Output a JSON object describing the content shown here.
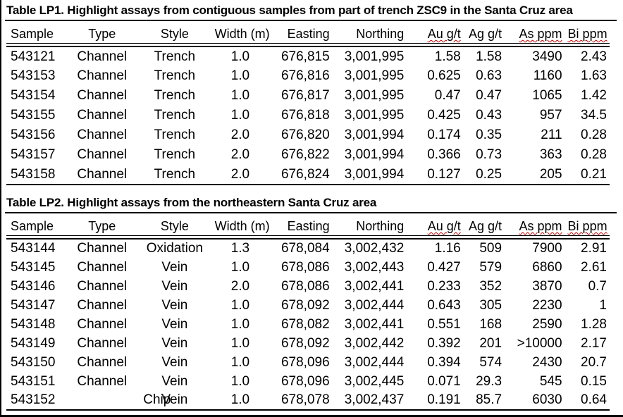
{
  "tables": [
    {
      "title": "Table LP1. Highlight assays from contiguous samples from part of trench ZSC9 in the Santa Cruz area",
      "columns": [
        {
          "label": "Sample",
          "wavy": false
        },
        {
          "label": "Type",
          "wavy": false
        },
        {
          "label": "Style",
          "wavy": false
        },
        {
          "label": "Width (m)",
          "wavy": false
        },
        {
          "label": "Easting",
          "wavy": false
        },
        {
          "label": "Northing",
          "wavy": false
        },
        {
          "label": "Au g/t",
          "wavy": true
        },
        {
          "label": "Ag g/t",
          "wavy": false
        },
        {
          "label": "As ppm",
          "wavy": true
        },
        {
          "label": "Bi ppm",
          "wavy": true
        }
      ],
      "rows": [
        [
          "543121",
          "Channel",
          "Trench",
          "1.0",
          "676,815",
          "3,001,995",
          "1.58",
          "1.58",
          "3490",
          "2.43"
        ],
        [
          "543153",
          "Channel",
          "Trench",
          "1.0",
          "676,816",
          "3,001,995",
          "0.625",
          "0.63",
          "1160",
          "1.63"
        ],
        [
          "543154",
          "Channel",
          "Trench",
          "1.0",
          "676,817",
          "3,001,995",
          "0.47",
          "0.47",
          "1065",
          "1.42"
        ],
        [
          "543155",
          "Channel",
          "Trench",
          "1.0",
          "676,818",
          "3,001,995",
          "0.425",
          "0.43",
          "957",
          "34.5"
        ],
        [
          "543156",
          "Channel",
          "Trench",
          "2.0",
          "676,820",
          "3,001,994",
          "0.174",
          "0.35",
          "211",
          "0.28"
        ],
        [
          "543157",
          "Channel",
          "Trench",
          "2.0",
          "676,822",
          "3,001,994",
          "0.366",
          "0.73",
          "363",
          "0.28"
        ],
        [
          "543158",
          "Channel",
          "Trench",
          "2.0",
          "676,824",
          "3,001,994",
          "0.127",
          "0.25",
          "205",
          "0.21"
        ]
      ]
    },
    {
      "title": "Table LP2. Highlight assays from the northeastern Santa Cruz area",
      "columns": [
        {
          "label": "Sample",
          "wavy": false
        },
        {
          "label": "Type",
          "wavy": false
        },
        {
          "label": "Style",
          "wavy": false
        },
        {
          "label": "Width (m)",
          "wavy": false
        },
        {
          "label": "Easting",
          "wavy": false
        },
        {
          "label": "Northing",
          "wavy": false
        },
        {
          "label": "Au g/t",
          "wavy": true
        },
        {
          "label": "Ag g/t",
          "wavy": false
        },
        {
          "label": "As ppm",
          "wavy": true
        },
        {
          "label": "Bi ppm",
          "wavy": true
        }
      ],
      "rows": [
        [
          "543144",
          "Channel",
          "Oxidation",
          "1.3",
          "678,084",
          "3,002,432",
          "1.16",
          "509",
          "7900",
          "2.91"
        ],
        [
          "543145",
          "Channel",
          "Vein",
          "1.0",
          "678,086",
          "3,002,443",
          "0.427",
          "579",
          "6860",
          "2.61"
        ],
        [
          "543146",
          "Channel",
          "Vein",
          "2.0",
          "678,086",
          "3,002,441",
          "0.233",
          "352",
          "3870",
          "0.7"
        ],
        [
          "543147",
          "Channel",
          "Vein",
          "1.0",
          "678,092",
          "3,002,444",
          "0.643",
          "305",
          "2230",
          "1"
        ],
        [
          "543148",
          "Channel",
          "Vein",
          "1.0",
          "678,082",
          "3,002,441",
          "0.551",
          "168",
          "2590",
          "1.28"
        ],
        [
          "543149",
          "Channel",
          "Vein",
          "1.0",
          "678,092",
          "3,002,442",
          "0.392",
          "201",
          ">10000",
          "2.17"
        ],
        [
          "543150",
          "Channel",
          "Vein",
          "1.0",
          "678,096",
          "3,002,444",
          "0.394",
          "574",
          "2430",
          "20.7"
        ],
        [
          "543151",
          "Channel",
          "Vein",
          "1.0",
          "678,096",
          "3,002,445",
          "0.071",
          "29.3",
          "545",
          "0.15"
        ],
        [
          "543152",
          "Chip",
          "Vein",
          "1.0",
          "678,078",
          "3,002,437",
          "0.191",
          "85.7",
          "6030",
          "0.64"
        ]
      ]
    }
  ]
}
